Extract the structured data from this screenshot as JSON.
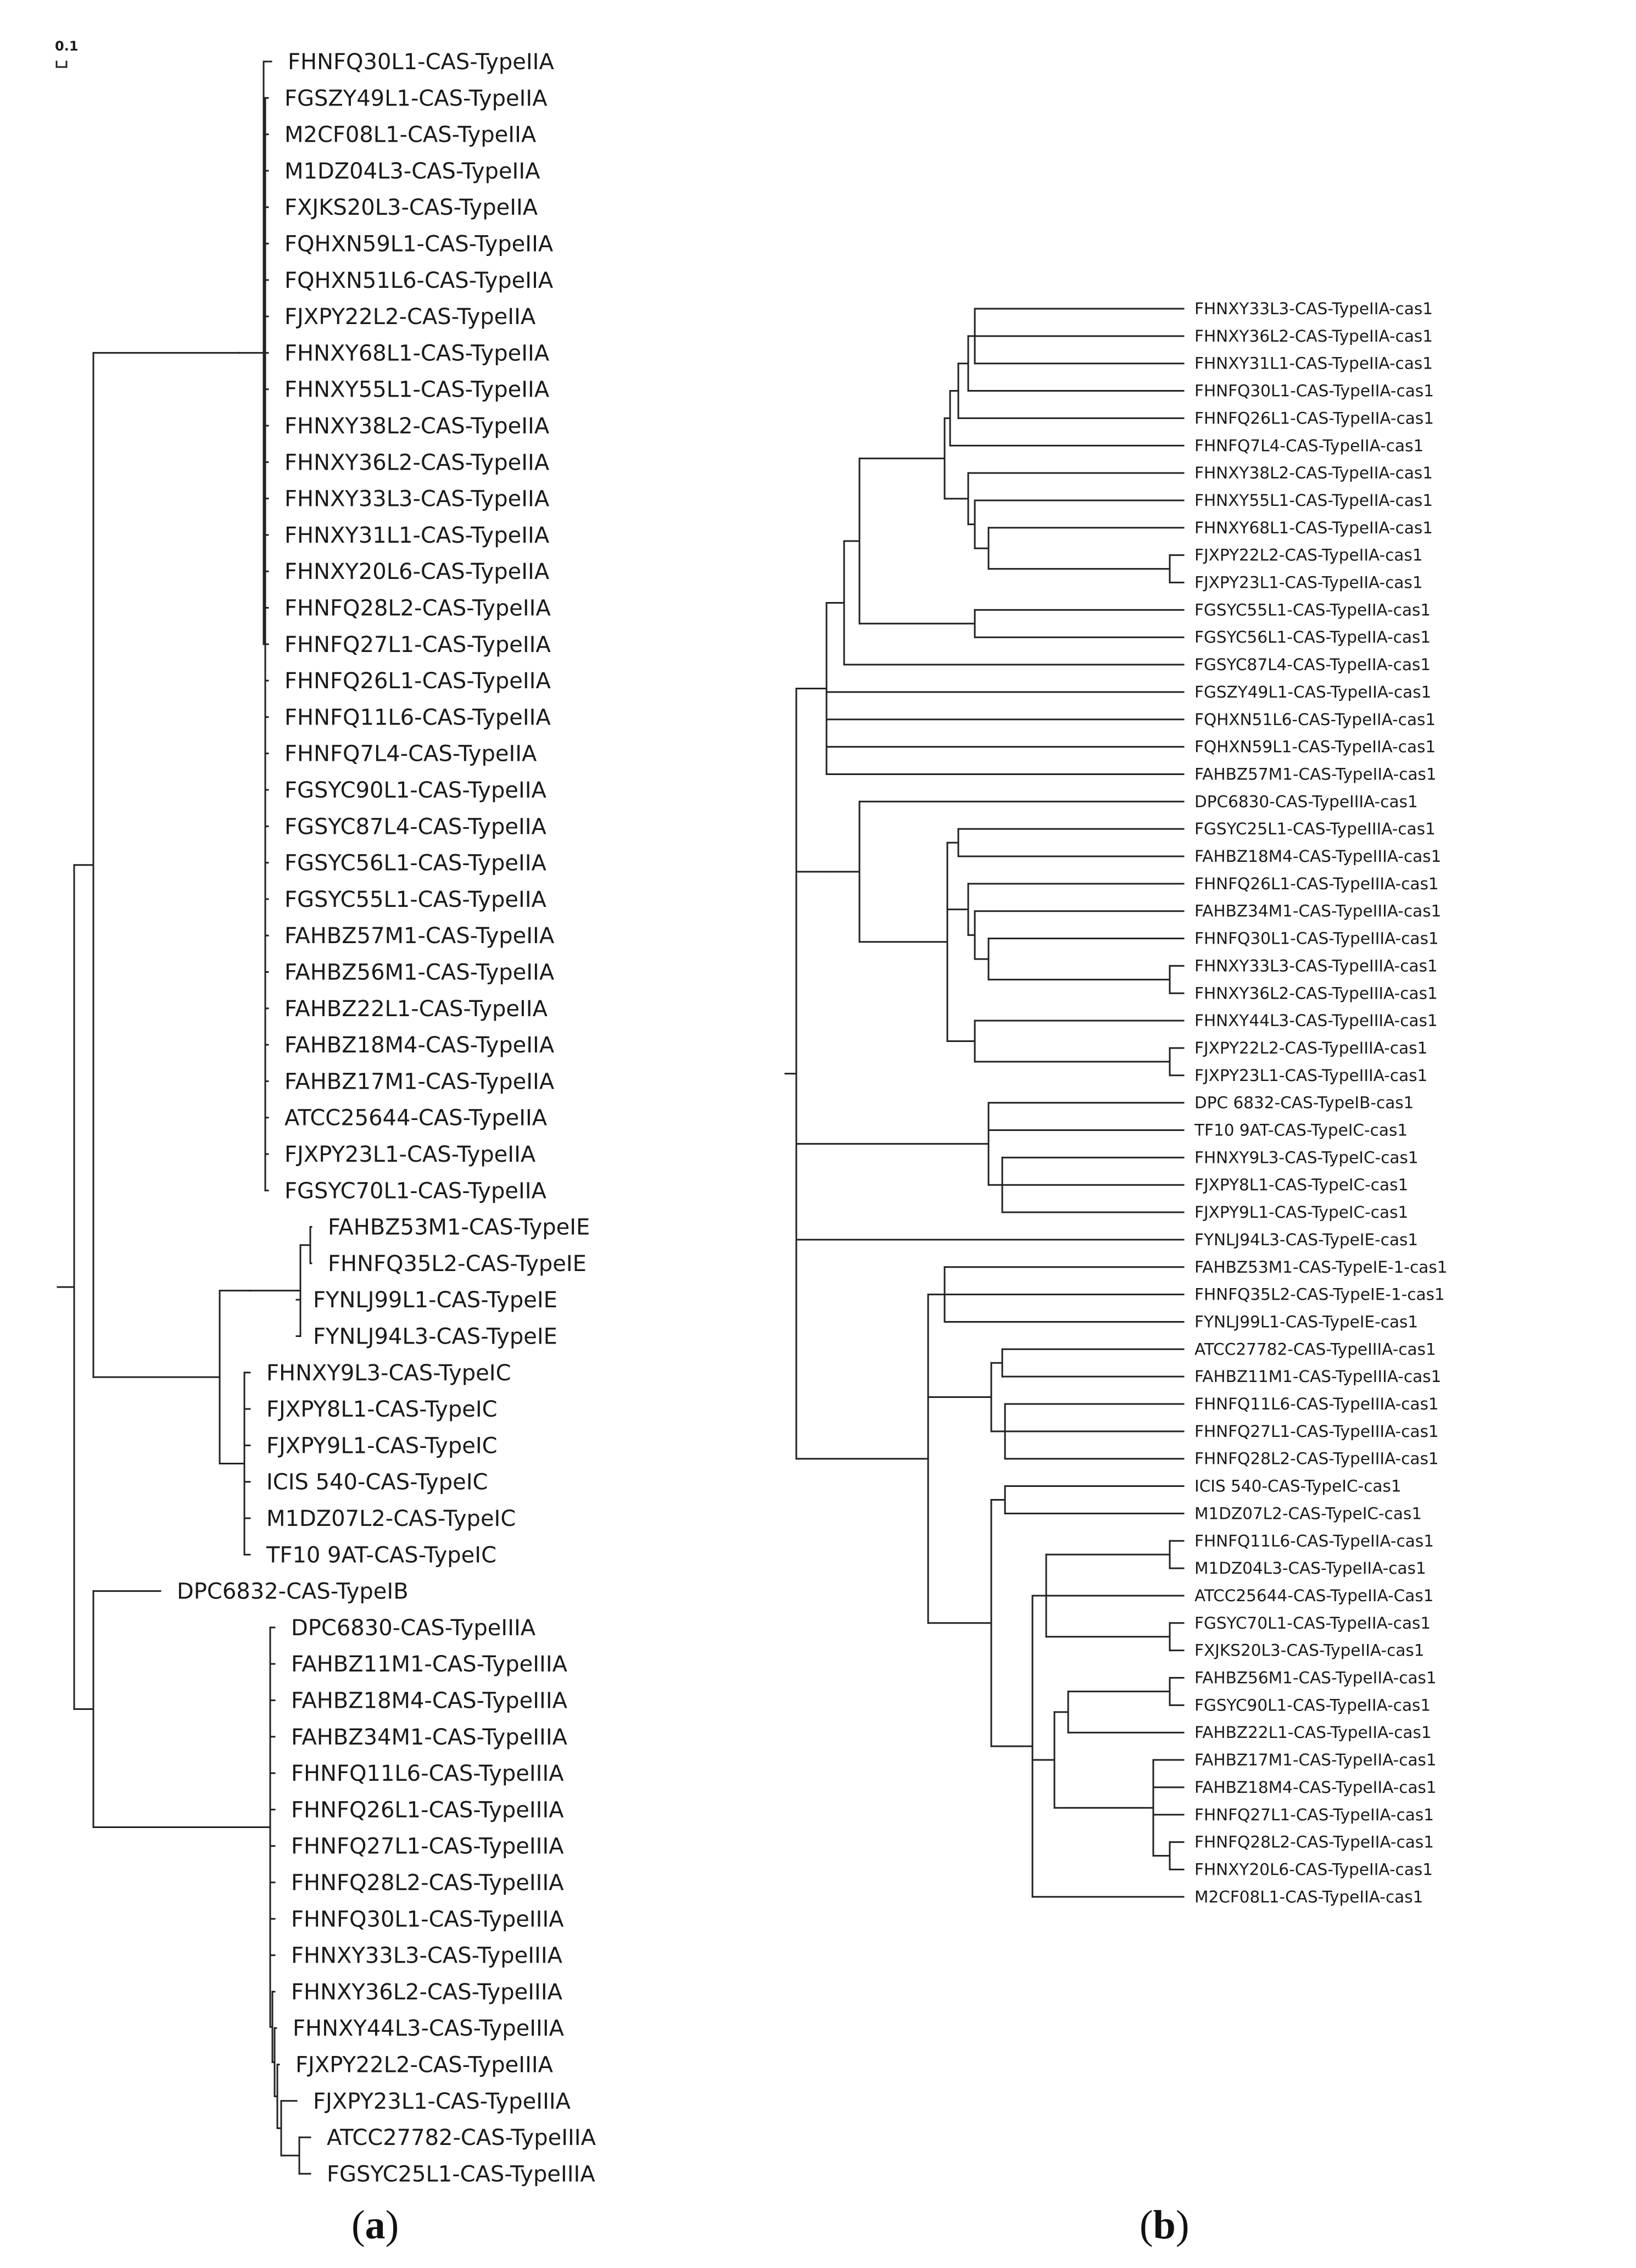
{
  "scale_bar": {
    "label": "0.1"
  },
  "panel_a": {
    "label_open": "(",
    "label_letter": "a",
    "label_close": ")",
    "leaves": [
      "FHNFQ30L1-CAS-TypeIIA",
      "FGSZY49L1-CAS-TypeIIA",
      "M2CF08L1-CAS-TypeIIA",
      "M1DZ04L3-CAS-TypeIIA",
      "FXJKS20L3-CAS-TypeIIA",
      "FQHXN59L1-CAS-TypeIIA",
      "FQHXN51L6-CAS-TypeIIA",
      "FJXPY22L2-CAS-TypeIIA",
      "FHNXY68L1-CAS-TypeIIA",
      "FHNXY55L1-CAS-TypeIIA",
      "FHNXY38L2-CAS-TypeIIA",
      "FHNXY36L2-CAS-TypeIIA",
      "FHNXY33L3-CAS-TypeIIA",
      "FHNXY31L1-CAS-TypeIIA",
      "FHNXY20L6-CAS-TypeIIA",
      "FHNFQ28L2-CAS-TypeIIA",
      "FHNFQ27L1-CAS-TypeIIA",
      "FHNFQ26L1-CAS-TypeIIA",
      "FHNFQ11L6-CAS-TypeIIA",
      "FHNFQ7L4-CAS-TypeIIA",
      "FGSYC90L1-CAS-TypeIIA",
      "FGSYC87L4-CAS-TypeIIA",
      "FGSYC56L1-CAS-TypeIIA",
      "FGSYC55L1-CAS-TypeIIA",
      "FAHBZ57M1-CAS-TypeIIA",
      "FAHBZ56M1-CAS-TypeIIA",
      "FAHBZ22L1-CAS-TypeIIA",
      "FAHBZ18M4-CAS-TypeIIA",
      "FAHBZ17M1-CAS-TypeIIA",
      "ATCC25644-CAS-TypeIIA",
      "FJXPY23L1-CAS-TypeIIA",
      "FGSYC70L1-CAS-TypeIIA",
      "FAHBZ53M1-CAS-TypeIE",
      "FHNFQ35L2-CAS-TypeIE",
      "FYNLJ99L1-CAS-TypeIE",
      "FYNLJ94L3-CAS-TypeIE",
      "FHNXY9L3-CAS-TypeIC",
      "FJXPY8L1-CAS-TypeIC",
      "FJXPY9L1-CAS-TypeIC",
      "ICIS 540-CAS-TypeIC",
      "M1DZ07L2-CAS-TypeIC",
      "TF10 9AT-CAS-TypeIC",
      "DPC6832-CAS-TypeIB",
      "DPC6830-CAS-TypeIIIA",
      "FAHBZ11M1-CAS-TypeIIIA",
      "FAHBZ18M4-CAS-TypeIIIA",
      "FAHBZ34M1-CAS-TypeIIIA",
      "FHNFQ11L6-CAS-TypeIIIA",
      "FHNFQ26L1-CAS-TypeIIIA",
      "FHNFQ27L1-CAS-TypeIIIA",
      "FHNFQ28L2-CAS-TypeIIIA",
      "FHNFQ30L1-CAS-TypeIIIA",
      "FHNXY33L3-CAS-TypeIIIA",
      "FHNXY36L2-CAS-TypeIIIA",
      "FHNXY44L3-CAS-TypeIIIA",
      "FJXPY22L2-CAS-TypeIIIA",
      "FJXPY23L1-CAS-TypeIIIA",
      "ATCC27782-CAS-TypeIIIA",
      "FGSYC25L1-CAS-TypeIIIA"
    ]
  },
  "panel_b": {
    "label_open": "(",
    "label_letter": "b",
    "label_close": ")",
    "leaves": [
      "FHNXY33L3-CAS-TypeIIA-cas1",
      "FHNXY36L2-CAS-TypeIIA-cas1",
      "FHNXY31L1-CAS-TypeIIA-cas1",
      "FHNFQ30L1-CAS-TypeIIA-cas1",
      "FHNFQ26L1-CAS-TypeIIA-cas1",
      "FHNFQ7L4-CAS-TypeIIA-cas1",
      "FHNXY38L2-CAS-TypeIIA-cas1",
      "FHNXY55L1-CAS-TypeIIA-cas1",
      "FHNXY68L1-CAS-TypeIIA-cas1",
      "FJXPY22L2-CAS-TypeIIA-cas1",
      "FJXPY23L1-CAS-TypeIIA-cas1",
      "FGSYC55L1-CAS-TypeIIA-cas1",
      "FGSYC56L1-CAS-TypeIIA-cas1",
      "FGSYC87L4-CAS-TypeIIA-cas1",
      "FGSZY49L1-CAS-TypeIIA-cas1",
      "FQHXN51L6-CAS-TypeIIA-cas1",
      "FQHXN59L1-CAS-TypeIIA-cas1",
      "FAHBZ57M1-CAS-TypeIIA-cas1",
      "DPC6830-CAS-TypeIIIA-cas1",
      "FGSYC25L1-CAS-TypeIIIA-cas1",
      "FAHBZ18M4-CAS-TypeIIIA-cas1",
      "FHNFQ26L1-CAS-TypeIIIA-cas1",
      "FAHBZ34M1-CAS-TypeIIIA-cas1",
      "FHNFQ30L1-CAS-TypeIIIA-cas1",
      "FHNXY33L3-CAS-TypeIIIA-cas1",
      "FHNXY36L2-CAS-TypeIIIA-cas1",
      "FHNXY44L3-CAS-TypeIIIA-cas1",
      "FJXPY22L2-CAS-TypeIIIA-cas1",
      "FJXPY23L1-CAS-TypeIIIA-cas1",
      "DPC 6832-CAS-TypeIB-cas1",
      "TF10 9AT-CAS-TypeIC-cas1",
      "FHNXY9L3-CAS-TypeIC-cas1",
      "FJXPY8L1-CAS-TypeIC-cas1",
      "FJXPY9L1-CAS-TypeIC-cas1",
      "FYNLJ94L3-CAS-TypeIE-cas1",
      "FAHBZ53M1-CAS-TypeIE-1-cas1",
      "FHNFQ35L2-CAS-TypeIE-1-cas1",
      "FYNLJ99L1-CAS-TypeIE-cas1",
      "ATCC27782-CAS-TypeIIIA-cas1",
      "FAHBZ11M1-CAS-TypeIIIA-cas1",
      "FHNFQ11L6-CAS-TypeIIIA-cas1",
      "FHNFQ27L1-CAS-TypeIIIA-cas1",
      "FHNFQ28L2-CAS-TypeIIIA-cas1",
      "ICIS 540-CAS-TypeIC-cas1",
      "M1DZ07L2-CAS-TypeIC-cas1",
      "FHNFQ11L6-CAS-TypeIIA-cas1",
      "M1DZ04L3-CAS-TypeIIA-cas1",
      "ATCC25644-CAS-TypeIIA-Cas1",
      "FGSYC70L1-CAS-TypeIIA-cas1",
      "FXJKS20L3-CAS-TypeIIA-cas1",
      "FAHBZ56M1-CAS-TypeIIA-cas1",
      "FGSYC90L1-CAS-TypeIIA-cas1",
      "FAHBZ22L1-CAS-TypeIIA-cas1",
      "FAHBZ17M1-CAS-TypeIIA-cas1",
      "FAHBZ18M4-CAS-TypeIIA-cas1",
      "FHNFQ27L1-CAS-TypeIIA-cas1",
      "FHNFQ28L2-CAS-TypeIIA-cas1",
      "FHNXY20L6-CAS-TypeIIA-cas1",
      "M2CF08L1-CAS-TypeIIA-cas1"
    ]
  }
}
